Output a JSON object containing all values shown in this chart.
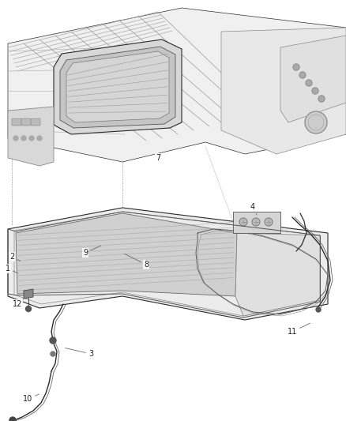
{
  "bg_color": "#ffffff",
  "line_color": "#2a2a2a",
  "gray_light": "#c8c8c8",
  "gray_mid": "#888888",
  "gray_dark": "#444444",
  "fig_width": 4.38,
  "fig_height": 5.33,
  "dpi": 100
}
